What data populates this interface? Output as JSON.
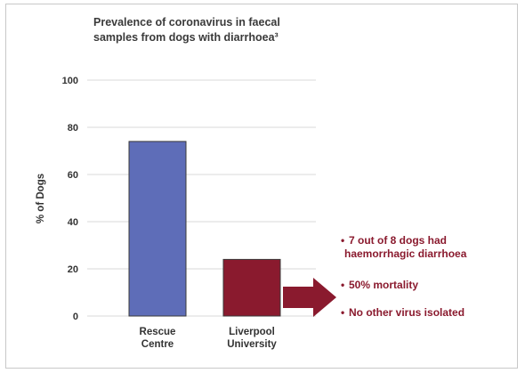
{
  "chart_data": {
    "type": "bar",
    "title_lines": [
      "Prevalence of coronavirus in faecal",
      "samples from dogs with diarrhoea³"
    ],
    "ylabel": "% of Dogs",
    "xlabel": "",
    "ylim": [
      0,
      100
    ],
    "yticks": [
      0,
      20,
      40,
      60,
      80,
      100
    ],
    "grid": true,
    "categories": [
      {
        "lines": [
          "Rescue",
          "Centre"
        ]
      },
      {
        "lines": [
          "Liverpool",
          "University"
        ]
      }
    ],
    "values": [
      74,
      24
    ],
    "colors": [
      "#5e6db8",
      "#8a1a2e"
    ],
    "annotations": [
      {
        "bullet": "•",
        "lines": [
          "7 out of 8 dogs had",
          "haemorrhagic diarrhoea"
        ]
      },
      {
        "bullet": "•",
        "lines": [
          "50% mortality"
        ]
      },
      {
        "bullet": "•",
        "lines": [
          "No other virus isolated"
        ]
      }
    ],
    "arrow_color": "#8a1a2e"
  }
}
